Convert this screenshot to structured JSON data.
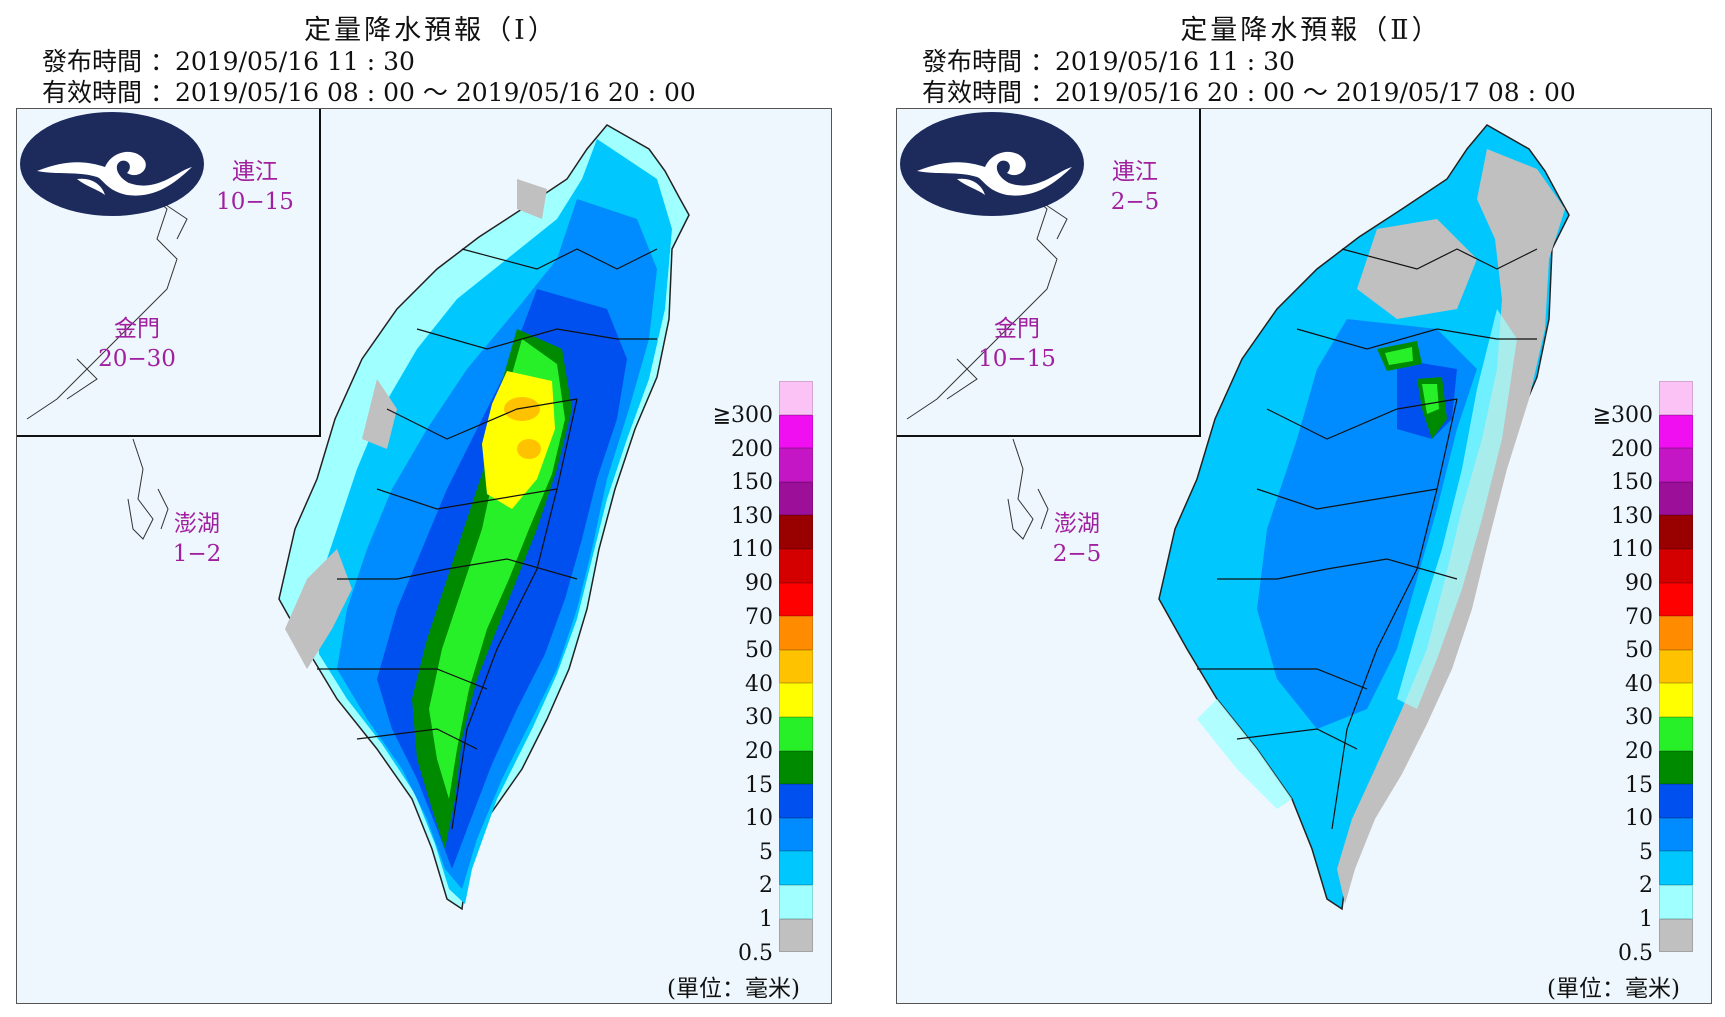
{
  "panels": [
    {
      "title": "定量降水預報（Ⅰ）",
      "issue_time": "發布時間 ：2019/05/16 11 : 30",
      "valid_time": "有效時間 ：2019/05/16 08 : 00 ～ 2019/05/16 20 : 00",
      "islands": {
        "matsu_name": "連江",
        "matsu_value": "10−15",
        "kinmen_name": "金門",
        "kinmen_value": "20−30",
        "penghu_name": "澎湖",
        "penghu_value": "1−2"
      }
    },
    {
      "title": "定量降水預報（Ⅱ）",
      "issue_time": "發布時間 ：2019/05/16 11 : 30",
      "valid_time": "有效時間 ：2019/05/16 20 : 00 ～ 2019/05/17 08 : 00",
      "islands": {
        "matsu_name": "連江",
        "matsu_value": "2−5",
        "kinmen_name": "金門",
        "kinmen_value": "10−15",
        "penghu_name": "澎湖",
        "penghu_value": "2−5"
      }
    }
  ],
  "legend": {
    "ticks": [
      "≧300",
      "200",
      "150",
      "130",
      "110",
      "90",
      "70",
      "50",
      "40",
      "30",
      "20",
      "15",
      "10",
      "5",
      "2",
      "1",
      "0.5"
    ],
    "colors": [
      "#fbc3f5",
      "#f00ff0",
      "#c516c5",
      "#9b0f99",
      "#990000",
      "#d40000",
      "#ff0000",
      "#ff8c00",
      "#ffc200",
      "#ffff00",
      "#28f028",
      "#008a00",
      "#0050f0",
      "#008cff",
      "#00c8ff",
      "#a0ffff",
      "#c0c0c0"
    ],
    "unit": "(單位：毫米)"
  },
  "colors": {
    "rain_1": "#a0ffff",
    "rain_2": "#00c8ff",
    "rain_5": "#008cff",
    "rain_10": "#0050f0",
    "rain_15": "#008a00",
    "rain_20": "#28f028",
    "rain_30": "#ffff00",
    "rain_40": "#ffc200",
    "no_rain": "#c0c0c0",
    "island_label": "#a020a0",
    "logo_navy": "#1d2a5c"
  }
}
